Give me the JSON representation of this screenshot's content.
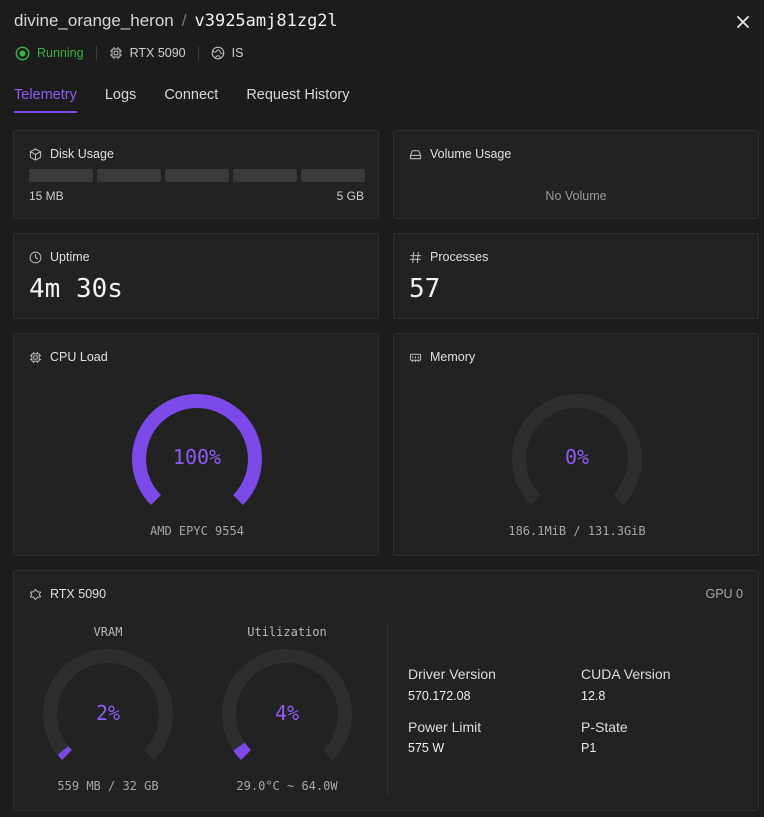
{
  "header": {
    "name": "divine_orange_heron",
    "separator": "/",
    "instance_id": "v3925amj81zg2l"
  },
  "meta": {
    "status": "Running",
    "gpu": "RTX 5090",
    "region": "IS"
  },
  "tabs": [
    {
      "label": "Telemetry",
      "active": true
    },
    {
      "label": "Logs",
      "active": false
    },
    {
      "label": "Connect",
      "active": false
    },
    {
      "label": "Request History",
      "active": false
    }
  ],
  "disk": {
    "title": "Disk Usage",
    "used": "15 MB",
    "total": "5 GB",
    "fraction": 0.003
  },
  "volume": {
    "title": "Volume Usage",
    "empty_text": "No Volume"
  },
  "uptime": {
    "title": "Uptime",
    "value": "4m 30s"
  },
  "processes": {
    "title": "Processes",
    "value": "57"
  },
  "cpu": {
    "title": "CPU Load",
    "value_label": "100%",
    "percent": 100,
    "model": "AMD EPYC 9554"
  },
  "memory": {
    "title": "Memory",
    "value_label": "0%",
    "percent": 0,
    "detail": "186.1MiB / 131.3GiB"
  },
  "gpu_card": {
    "title": "RTX 5090",
    "index_label": "GPU 0",
    "vram": {
      "title": "VRAM",
      "value_label": "2%",
      "percent": 2,
      "detail": "559 MB / 32 GB"
    },
    "util": {
      "title": "Utilization",
      "value_label": "4%",
      "percent": 4,
      "detail": "29.0°C ~ 64.0W"
    },
    "specs": {
      "driver_label": "Driver Version",
      "driver_value": "570.172.08",
      "cuda_label": "CUDA Version",
      "cuda_value": "12.8",
      "power_label": "Power Limit",
      "power_value": "575 W",
      "pstate_label": "P-State",
      "pstate_value": "P1"
    }
  },
  "colors": {
    "accent": "#7b4ae8",
    "running": "#3cb043",
    "track": "#2e2e2e"
  },
  "icons": [
    "close-icon",
    "running-status-icon",
    "cpu-chip-icon",
    "globe-icon",
    "box-icon",
    "drive-icon",
    "clock-icon",
    "hash-icon",
    "memory-icon",
    "gpu-icon"
  ]
}
